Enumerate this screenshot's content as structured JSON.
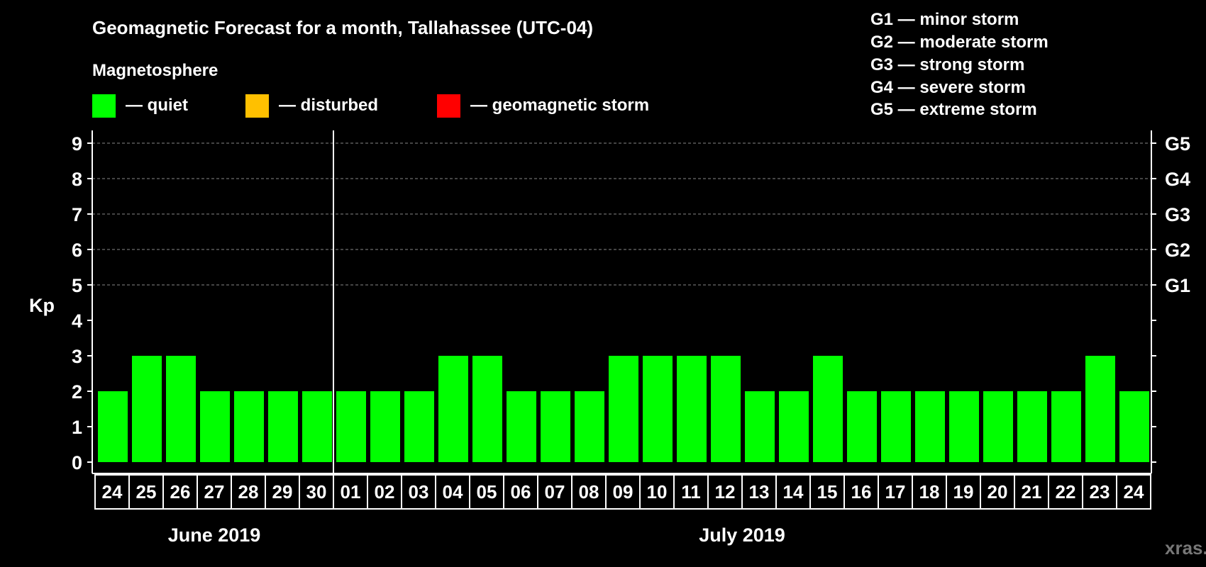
{
  "title": "Geomagnetic Forecast for a month, Tallahassee (UTC-04)",
  "legend": {
    "heading": "Magnetosphere",
    "items": [
      {
        "label": "— quiet",
        "color": "#00ff00"
      },
      {
        "label": "— disturbed",
        "color": "#ffc000"
      },
      {
        "label": "— geomagnetic storm",
        "color": "#ff0000"
      }
    ]
  },
  "storm_scale": [
    "G1 — minor storm",
    "G2 — moderate storm",
    "G3 — strong storm",
    "G4 — severe storm",
    "G5 — extreme storm"
  ],
  "watermark": "xras.ru",
  "chart_data": {
    "type": "bar",
    "title": "Geomagnetic Forecast for a month, Tallahassee (UTC-04)",
    "ylabel": "Kp",
    "ylim": [
      0,
      9
    ],
    "yticks": [
      "0",
      "1",
      "2",
      "3",
      "4",
      "5",
      "6",
      "7",
      "8",
      "9"
    ],
    "right_ticks": [
      {
        "value": 5,
        "label": "G1"
      },
      {
        "value": 6,
        "label": "G2"
      },
      {
        "value": 7,
        "label": "G3"
      },
      {
        "value": 8,
        "label": "G4"
      },
      {
        "value": 9,
        "label": "G5"
      }
    ],
    "grid": "dashed horizontal at 5-9",
    "months": [
      {
        "label": "June 2019",
        "days": 7
      },
      {
        "label": "July 2019",
        "days": 24
      }
    ],
    "categories": [
      "24",
      "25",
      "26",
      "27",
      "28",
      "29",
      "30",
      "01",
      "02",
      "03",
      "04",
      "05",
      "06",
      "07",
      "08",
      "09",
      "10",
      "11",
      "12",
      "13",
      "14",
      "15",
      "16",
      "17",
      "18",
      "19",
      "20",
      "21",
      "22",
      "23",
      "24"
    ],
    "values": [
      2,
      3,
      3,
      2,
      2,
      2,
      2,
      2,
      2,
      2,
      3,
      3,
      2,
      2,
      2,
      3,
      3,
      3,
      3,
      2,
      2,
      3,
      2,
      2,
      2,
      2,
      2,
      2,
      2,
      3,
      2
    ],
    "bar_color": "#00ff00"
  }
}
